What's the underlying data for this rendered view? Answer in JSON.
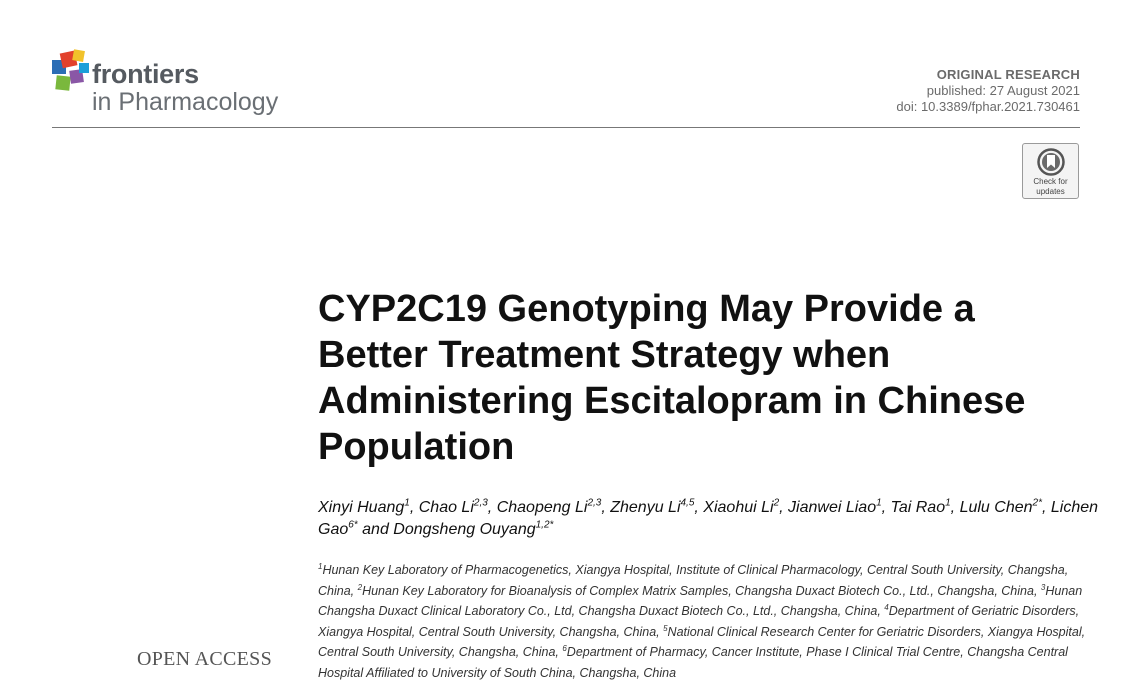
{
  "header": {
    "logo": {
      "brand": "frontiers",
      "journal": "in Pharmacology",
      "colors": [
        "#2b6db5",
        "#e2412c",
        "#f1c22b",
        "#7ab83d",
        "#8a57a6",
        "#1c9fd9"
      ]
    },
    "article_type": "ORIGINAL RESEARCH",
    "published": "published: 27 August 2021",
    "doi": "doi: 10.3389/fphar.2021.730461",
    "check_updates": {
      "line1": "Check for",
      "line2": "updates",
      "icon": "bookmark-ring-icon"
    }
  },
  "title": "CYP2C19 Genotyping May Provide a Better Treatment Strategy when Administering Escitalopram in Chinese Population",
  "authors": [
    {
      "name": "Xinyi Huang",
      "sup": "1",
      "sep": ", "
    },
    {
      "name": "Chao Li",
      "sup": "2,3",
      "sep": ", "
    },
    {
      "name": "Chaopeng Li",
      "sup": "2,3",
      "sep": ", "
    },
    {
      "name": "Zhenyu Li",
      "sup": "4,5",
      "sep": ", "
    },
    {
      "name": "Xiaohui Li",
      "sup": "2",
      "sep": ", "
    },
    {
      "name": "Jianwei Liao",
      "sup": "1",
      "sep": ", "
    },
    {
      "name": "Tai Rao",
      "sup": "1",
      "sep": ", "
    },
    {
      "name": "Lulu Chen",
      "sup": "2*",
      "sep": ", "
    },
    {
      "name": "Lichen Gao",
      "sup": "6*",
      "sep": " and "
    },
    {
      "name": "Dongsheng Ouyang",
      "sup": "1,2*",
      "sep": ""
    }
  ],
  "affiliations": [
    {
      "sup": "1",
      "text": "Hunan Key Laboratory of Pharmacogenetics, Xiangya Hospital, Institute of Clinical Pharmacology, Central South University, Changsha, China, "
    },
    {
      "sup": "2",
      "text": "Hunan Key Laboratory for Bioanalysis of Complex Matrix Samples, Changsha Duxact Biotech Co., Ltd., Changsha, China, "
    },
    {
      "sup": "3",
      "text": "Hunan Changsha Duxact Clinical Laboratory Co., Ltd, Changsha Duxact Biotech Co., Ltd., Changsha, China, "
    },
    {
      "sup": "4",
      "text": "Department of Geriatric Disorders, Xiangya Hospital, Central South University, Changsha, China, "
    },
    {
      "sup": "5",
      "text": "National Clinical Research Center for Geriatric Disorders, Xiangya Hospital, Central South University, Changsha, China, "
    },
    {
      "sup": "6",
      "text": "Department of Pharmacy, Cancer Institute, Phase I Clinical Trial Centre, Changsha Central Hospital Affiliated to University of South China, Changsha, China"
    }
  ],
  "sidebar": {
    "open_access": "OPEN ACCESS"
  }
}
